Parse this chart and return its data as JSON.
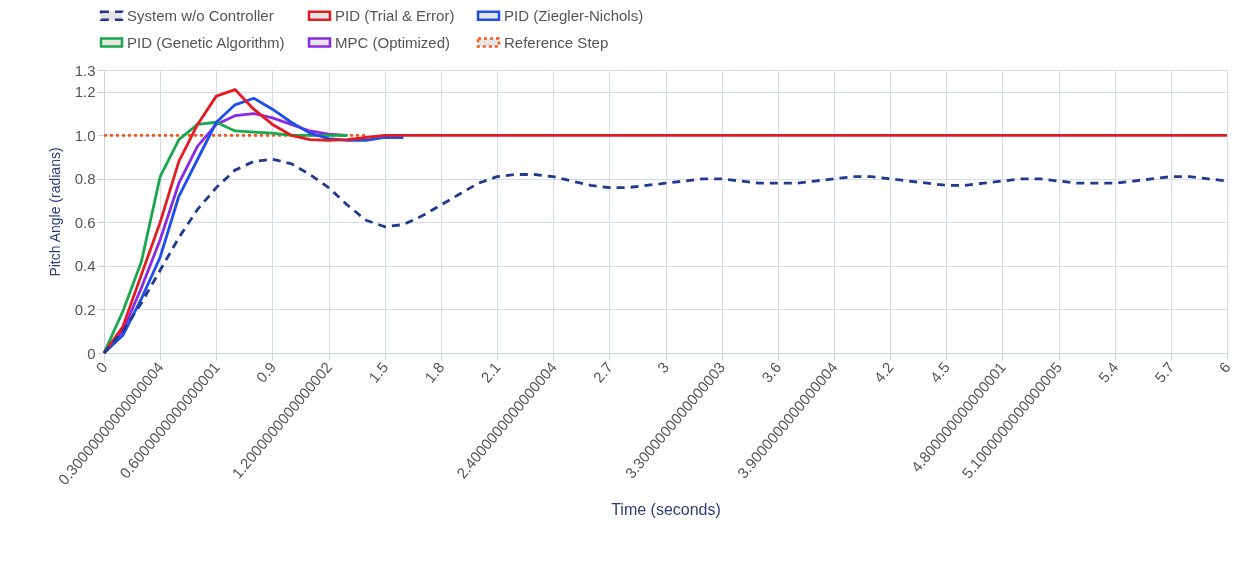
{
  "chart_data": {
    "type": "line",
    "xlabel": "Time (seconds)",
    "ylabel": "Pitch Angle (radians)",
    "categories": [
      "0",
      null,
      null,
      "0.30000000000000004",
      null,
      null,
      "0.6000000000000001",
      null,
      null,
      "0.9",
      null,
      null,
      "1.2000000000000002",
      null,
      null,
      "1.5",
      null,
      null,
      "1.8",
      null,
      null,
      "2.1",
      null,
      null,
      "2.4000000000000004",
      null,
      null,
      "2.7",
      null,
      null,
      "3",
      null,
      null,
      "3.3000000000000003",
      null,
      null,
      "3.6",
      null,
      null,
      "3.9000000000000004",
      null,
      null,
      "4.2",
      null,
      null,
      "4.5",
      null,
      null,
      "4.800000000000001",
      null,
      null,
      "5.1000000000000005",
      null,
      null,
      "5.4",
      null,
      null,
      "5.7",
      null,
      null,
      "6"
    ],
    "ylim": [
      0,
      1.3
    ],
    "yticks": [
      0,
      0.2,
      0.4,
      0.6,
      0.8,
      {
        "value": 1,
        "label": "1.0"
      },
      1.2,
      1.3
    ],
    "grid": true,
    "legend": "top",
    "series": [
      {
        "name": "System w/o Controller",
        "color": "#1f3a8f",
        "line_style": "dashed",
        "values": [
          0,
          0.1,
          0.23,
          0.38,
          0.53,
          0.66,
          0.76,
          0.84,
          0.88,
          0.89,
          0.87,
          0.82,
          0.76,
          0.68,
          0.61,
          0.58,
          0.59,
          0.63,
          0.68,
          0.73,
          0.78,
          0.81,
          0.82,
          0.82,
          0.81,
          0.79,
          0.77,
          0.76,
          0.76,
          0.77,
          0.78,
          0.79,
          0.8,
          0.8,
          0.79,
          0.78,
          0.78,
          0.78,
          0.79,
          0.8,
          0.81,
          0.81,
          0.8,
          0.79,
          0.78,
          0.77,
          0.77,
          0.78,
          0.79,
          0.8,
          0.8,
          0.79,
          0.78,
          0.78,
          0.78,
          0.79,
          0.8,
          0.81,
          0.81,
          0.8,
          0.79
        ]
      },
      {
        "name": "PID (Trial & Error)",
        "color": "#e31b23",
        "line_style": "solid",
        "values": [
          0,
          0.12,
          0.36,
          0.6,
          0.88,
          1.05,
          1.18,
          1.21,
          1.12,
          1.05,
          1,
          0.98,
          0.977,
          0.98,
          0.99,
          1,
          1,
          1,
          1,
          1,
          1,
          1,
          1,
          1,
          1,
          1,
          1,
          1,
          1,
          1,
          1,
          1,
          1,
          1,
          1,
          1,
          1,
          1,
          1,
          1,
          1,
          1,
          1,
          1,
          1,
          1,
          1,
          1,
          1,
          1,
          1,
          1,
          1,
          1,
          1,
          1,
          1,
          1,
          1,
          1,
          1
        ]
      },
      {
        "name": "PID (Ziegler-Nichols)",
        "color": "#1e4fe8",
        "line_style": "solid",
        "values": [
          0,
          0.08,
          0.25,
          0.44,
          0.72,
          0.89,
          1.06,
          1.14,
          1.17,
          1.12,
          1.06,
          1.01,
          0.985,
          0.977,
          0.977,
          0.99,
          0.99,
          null,
          null,
          null,
          null,
          null,
          null,
          null,
          null,
          null,
          null,
          null,
          null,
          null,
          null,
          null,
          null,
          null,
          null,
          null,
          null,
          null,
          null,
          null,
          null,
          null,
          null,
          null,
          null,
          null,
          null,
          null,
          null,
          null,
          null,
          null,
          null,
          null,
          null,
          null,
          null,
          null,
          null,
          null,
          null
        ]
      },
      {
        "name": "PID (Genetic Algorithm)",
        "color": "#1aa84f",
        "line_style": "solid",
        "values": [
          0,
          0.19,
          0.42,
          0.81,
          0.98,
          1.05,
          1.06,
          1.02,
          1.015,
          1.01,
          1,
          1,
          1,
          1,
          null,
          null,
          null,
          null,
          null,
          null,
          null,
          null,
          null,
          null,
          null,
          null,
          null,
          null,
          null,
          null,
          null,
          null,
          null,
          null,
          null,
          null,
          null,
          null,
          null,
          null,
          null,
          null,
          null,
          null,
          null,
          null,
          null,
          null,
          null,
          null,
          null,
          null,
          null,
          null,
          null,
          null,
          null,
          null,
          null,
          null,
          null
        ]
      },
      {
        "name": "MPC (Optimized)",
        "color": "#8a2be2",
        "line_style": "solid",
        "values": [
          0,
          0.1,
          0.3,
          0.52,
          0.78,
          0.95,
          1.05,
          1.09,
          1.1,
          1.08,
          1.05,
          1.02,
          1.005,
          1,
          null,
          null,
          null,
          null,
          null,
          null,
          null,
          null,
          null,
          null,
          null,
          null,
          null,
          null,
          null,
          null,
          null,
          null,
          null,
          null,
          null,
          null,
          null,
          null,
          null,
          null,
          null,
          null,
          null,
          null,
          null,
          null,
          null,
          null,
          null,
          null,
          null,
          null,
          null,
          null,
          null,
          null,
          null,
          null,
          null,
          null,
          null
        ]
      },
      {
        "name": "Reference Step",
        "color": "#f05a1c",
        "line_style": "dotted",
        "values": [
          1,
          1,
          1,
          1,
          1,
          1,
          1,
          1,
          1,
          1,
          1,
          1,
          1,
          1,
          1,
          null,
          null,
          null,
          null,
          null,
          null,
          null,
          null,
          null,
          null,
          null,
          null,
          null,
          null,
          null,
          null,
          null,
          null,
          null,
          null,
          null,
          null,
          null,
          null,
          null,
          null,
          null,
          null,
          null,
          null,
          null,
          null,
          null,
          null,
          null,
          null,
          null,
          null,
          null,
          null,
          null,
          null,
          null,
          null,
          null,
          null
        ]
      }
    ]
  }
}
